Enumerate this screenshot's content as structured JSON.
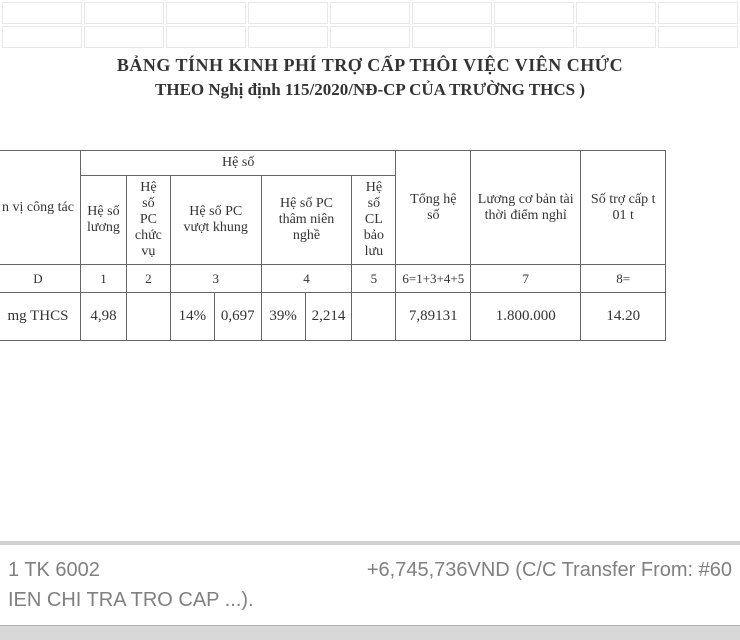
{
  "title": {
    "line1": "BẢNG TÍNH KINH PHÍ TRỢ CẤP THÔI VIỆC VIÊN CHỨC",
    "line2": "THEO Nghị định 115/2020/NĐ-CP CỦA TRƯỜNG THCS )"
  },
  "headers": {
    "group_heso": "Hệ số",
    "col_donvi": "n vị công tác",
    "col_hesoluong": "Hệ số lương",
    "col_hesopc_chucvu": "Hệ số PC chức vụ",
    "col_hesopc_vuotkhung": "Hệ số PC vượt khung",
    "col_hesopc_thamnien": "Hệ số PC thâm niên nghề",
    "col_hesocl_baoluu": "Hệ số CL bảo lưu",
    "col_tongheso": "Tổng hệ số",
    "col_luong": "Lương cơ bản tài thời điểm nghỉ",
    "col_sotrocap": "Số trợ cấp t 01 t"
  },
  "numrow": {
    "c0": "D",
    "c1": "1",
    "c2": "2",
    "c3": "3",
    "c5": "4",
    "c7": "5",
    "c8": "6=1+3+4+5",
    "c9": "7",
    "c10": "8="
  },
  "data": {
    "donvi": "mg THCS",
    "hesoluong": "4,98",
    "hesopc_chucvu": "",
    "vuotkhung_pct": "14%",
    "vuotkhung_val": "0,697",
    "thamnien_pct": "39%",
    "thamnien_val": "2,214",
    "cl_baoluu": "",
    "tongheso": "7,89131",
    "luong": "1.800.000",
    "sotrocap": "14.20"
  },
  "footer": {
    "left": "1 TK 6002",
    "right": "+6,745,736VND (C/C Transfer From: #60",
    "line2": "IEN CHI TRA TRO CAP ...)."
  },
  "styling": {
    "border_color": "#666666",
    "grid_color": "#e8e8e8",
    "footer_text_color": "#808080",
    "background": "#ffffff",
    "title_fontsize": 18,
    "header_fontsize": 14,
    "data_fontsize": 15,
    "footer_fontsize": 20
  }
}
